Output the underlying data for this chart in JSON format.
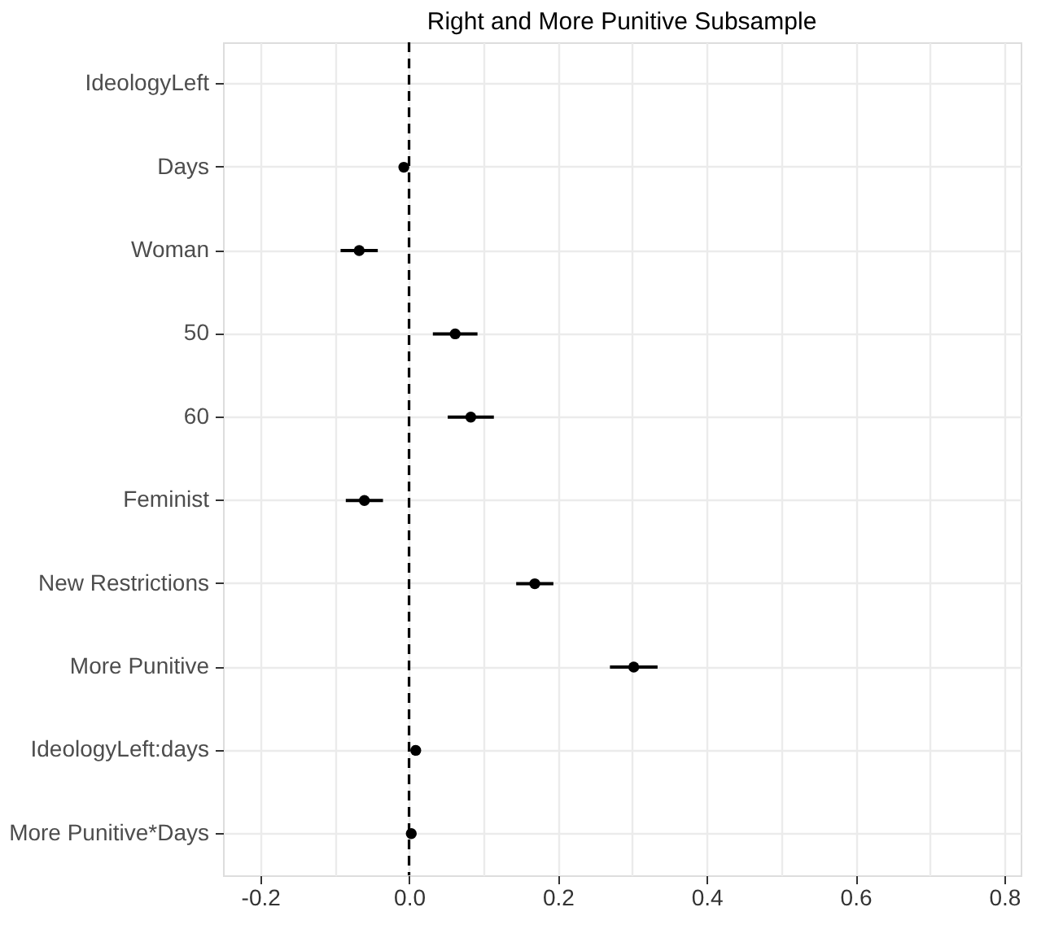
{
  "chart_data": {
    "type": "scatter",
    "orientation": "horizontal",
    "title": "Right and More Punitive Subsample",
    "categories": [
      "IdeologyLeft",
      "Days",
      "Woman",
      "50",
      "60",
      "Feminist",
      "New Restrictions",
      "More Punitive",
      "IdeologyLeft:days",
      "More Punitive*Days"
    ],
    "series": [
      {
        "color": "#000000",
        "values": [
          null,
          -0.007,
          -0.067,
          0.062,
          0.083,
          -0.06,
          0.169,
          0.302,
          0.009,
          0.003
        ],
        "errors": [
          null,
          null,
          0.025,
          0.03,
          0.031,
          0.025,
          0.025,
          0.032,
          null,
          null
        ]
      }
    ],
    "xlim": [
      -0.25,
      0.822
    ],
    "xticks": [
      -0.2,
      {
        "value": -0.1,
        "label": null
      },
      {
        "value": 0.0,
        "label": "0.0"
      },
      {
        "value": 0.1,
        "label": null
      },
      0.2,
      {
        "value": 0.3,
        "label": null
      },
      0.4,
      {
        "value": 0.5,
        "label": null
      },
      0.6,
      {
        "value": 0.7,
        "label": null
      },
      0.8
    ],
    "ref_lines": [
      {
        "axis": "x",
        "value": 0,
        "line_style": "dashed",
        "color": "#000000"
      }
    ],
    "grid": true,
    "marker": "circle"
  }
}
